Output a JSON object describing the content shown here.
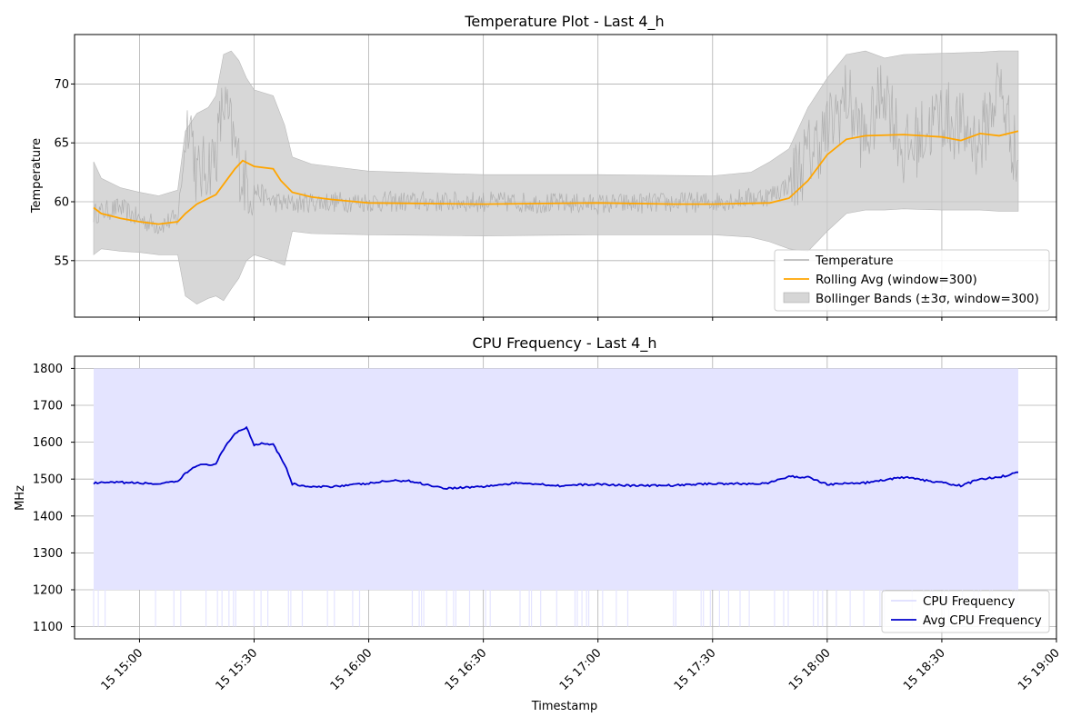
{
  "chart_data": [
    {
      "type": "line",
      "title": "Temperature Plot - Last 4_h",
      "xlabel": "",
      "ylabel": "Temperature",
      "xlim": [
        "2024-01-15 14:43",
        "2024-01-15 19:00"
      ],
      "ylim": [
        50.2,
        74.2
      ],
      "yticks": [
        55,
        60,
        65,
        70
      ],
      "grid": true,
      "legend_position": "lower right",
      "legend": [
        "Temperature",
        "Rolling Avg (window=300)",
        "Bollinger Bands (±3σ, window=300)"
      ],
      "colors": {
        "temperature": "#a0a0a0",
        "rolling_avg": "#FFA500",
        "bands": "#c8c8c8"
      },
      "data_start": "2024-01-15 14:48",
      "data_end": "2024-01-15 18:50",
      "series": [
        {
          "name": "Rolling Avg (window=300)",
          "x": [
            "14:48",
            "14:50",
            "14:55",
            "15:00",
            "15:05",
            "15:10",
            "15:12",
            "15:15",
            "15:20",
            "15:25",
            "15:27",
            "15:30",
            "15:35",
            "15:37",
            "15:40",
            "15:45",
            "15:50",
            "16:00",
            "16:30",
            "17:00",
            "17:20",
            "17:30",
            "17:45",
            "17:50",
            "17:55",
            "18:00",
            "18:05",
            "18:10",
            "18:20",
            "18:30",
            "18:35",
            "18:40",
            "18:45",
            "18:50"
          ],
          "y": [
            59.5,
            59.0,
            58.6,
            58.3,
            58.1,
            58.3,
            59.0,
            59.8,
            60.6,
            62.8,
            63.5,
            63.0,
            62.8,
            61.8,
            60.8,
            60.4,
            60.2,
            59.9,
            59.8,
            59.9,
            59.8,
            59.8,
            59.9,
            60.3,
            61.8,
            64.0,
            65.3,
            65.6,
            65.7,
            65.5,
            65.2,
            65.8,
            65.6,
            66.0
          ]
        },
        {
          "name": "Temperature",
          "x": [
            "14:48",
            "14:55",
            "15:00",
            "15:05",
            "15:10",
            "15:13",
            "15:15",
            "15:20",
            "15:22",
            "15:27",
            "15:30",
            "15:35",
            "15:40",
            "15:45",
            "16:00",
            "16:30",
            "17:00",
            "17:30",
            "17:45",
            "17:50",
            "17:55",
            "18:00",
            "18:05",
            "18:10",
            "18:15",
            "18:20",
            "18:30",
            "18:40",
            "18:45",
            "18:50"
          ],
          "y": [
            59.0,
            59.5,
            58.5,
            58.0,
            58.6,
            68.0,
            62.0,
            64.0,
            68.5,
            62.0,
            61.0,
            60.0,
            59.8,
            60.0,
            60.0,
            60.0,
            59.8,
            60.0,
            60.5,
            61.5,
            64.0,
            66.0,
            69.0,
            65.0,
            70.0,
            64.0,
            67.5,
            65.0,
            70.0,
            63.0
          ]
        },
        {
          "name": "Bollinger Bands (±3σ, window=300)",
          "x": [
            "14:48",
            "14:50",
            "14:55",
            "15:00",
            "15:05",
            "15:10",
            "15:12",
            "15:15",
            "15:18",
            "15:20",
            "15:22",
            "15:24",
            "15:26",
            "15:28",
            "15:30",
            "15:35",
            "15:38",
            "15:40",
            "15:45",
            "16:00",
            "16:30",
            "17:00",
            "17:30",
            "17:40",
            "17:45",
            "17:50",
            "17:55",
            "18:00",
            "18:05",
            "18:10",
            "18:15",
            "18:20",
            "18:30",
            "18:40",
            "18:45",
            "18:50"
          ],
          "upper": [
            63.4,
            62.0,
            61.2,
            60.8,
            60.5,
            61.0,
            66.0,
            67.5,
            68.0,
            69.0,
            72.5,
            72.8,
            72.0,
            70.5,
            69.5,
            69.0,
            66.5,
            63.8,
            63.2,
            62.6,
            62.3,
            62.3,
            62.2,
            62.5,
            63.4,
            64.5,
            68.0,
            70.5,
            72.5,
            72.8,
            72.2,
            72.5,
            72.6,
            72.7,
            72.8,
            72.8
          ],
          "lower": [
            55.5,
            56.0,
            55.8,
            55.7,
            55.5,
            55.5,
            52.0,
            51.3,
            51.8,
            52.0,
            51.6,
            52.6,
            53.5,
            55.0,
            55.5,
            55.0,
            54.6,
            57.5,
            57.3,
            57.2,
            57.1,
            57.2,
            57.2,
            57.0,
            56.6,
            56.0,
            55.8,
            57.5,
            59.0,
            59.3,
            59.3,
            59.4,
            59.3,
            59.3,
            59.2,
            59.2
          ]
        }
      ]
    },
    {
      "type": "line",
      "title": "CPU Frequency - Last 4_h",
      "xlabel": "Timestamp",
      "ylabel": "MHz",
      "xlim": [
        "2024-01-15 14:43",
        "2024-01-15 19:00"
      ],
      "ylim": [
        1067,
        1833
      ],
      "yticks": [
        1100,
        1200,
        1300,
        1400,
        1500,
        1600,
        1700,
        1800
      ],
      "xtick_labels": [
        "15 15:00",
        "15 15:30",
        "15 16:00",
        "15 16:30",
        "15 17:00",
        "15 17:30",
        "15 18:00",
        "15 18:30",
        "15 19:00"
      ],
      "grid": true,
      "legend_position": "lower right",
      "legend": [
        "CPU Frequency",
        "Avg CPU Frequency"
      ],
      "colors": {
        "cpu": "#e4e4ff",
        "avg": "#0000cd"
      },
      "series": [
        {
          "name": "CPU Frequency",
          "fill_range": [
            1200,
            1800
          ],
          "occasional_min": 1100
        },
        {
          "name": "Avg CPU Frequency",
          "x": [
            "14:48",
            "14:55",
            "15:00",
            "15:05",
            "15:10",
            "15:12",
            "15:15",
            "15:18",
            "15:20",
            "15:22",
            "15:25",
            "15:28",
            "15:30",
            "15:32",
            "15:35",
            "15:38",
            "15:40",
            "15:45",
            "15:50",
            "16:00",
            "16:05",
            "16:10",
            "16:20",
            "16:30",
            "16:40",
            "16:50",
            "17:00",
            "17:10",
            "17:20",
            "17:30",
            "17:40",
            "17:45",
            "17:50",
            "17:55",
            "18:00",
            "18:10",
            "18:20",
            "18:30",
            "18:35",
            "18:40",
            "18:45",
            "18:50"
          ],
          "y": [
            1489,
            1491,
            1489,
            1487,
            1493,
            1515,
            1538,
            1538,
            1542,
            1580,
            1625,
            1640,
            1593,
            1597,
            1595,
            1540,
            1487,
            1478,
            1480,
            1488,
            1495,
            1496,
            1475,
            1480,
            1490,
            1482,
            1486,
            1482,
            1483,
            1488,
            1487,
            1490,
            1507,
            1505,
            1486,
            1490,
            1505,
            1490,
            1482,
            1500,
            1505,
            1518
          ]
        }
      ]
    }
  ]
}
